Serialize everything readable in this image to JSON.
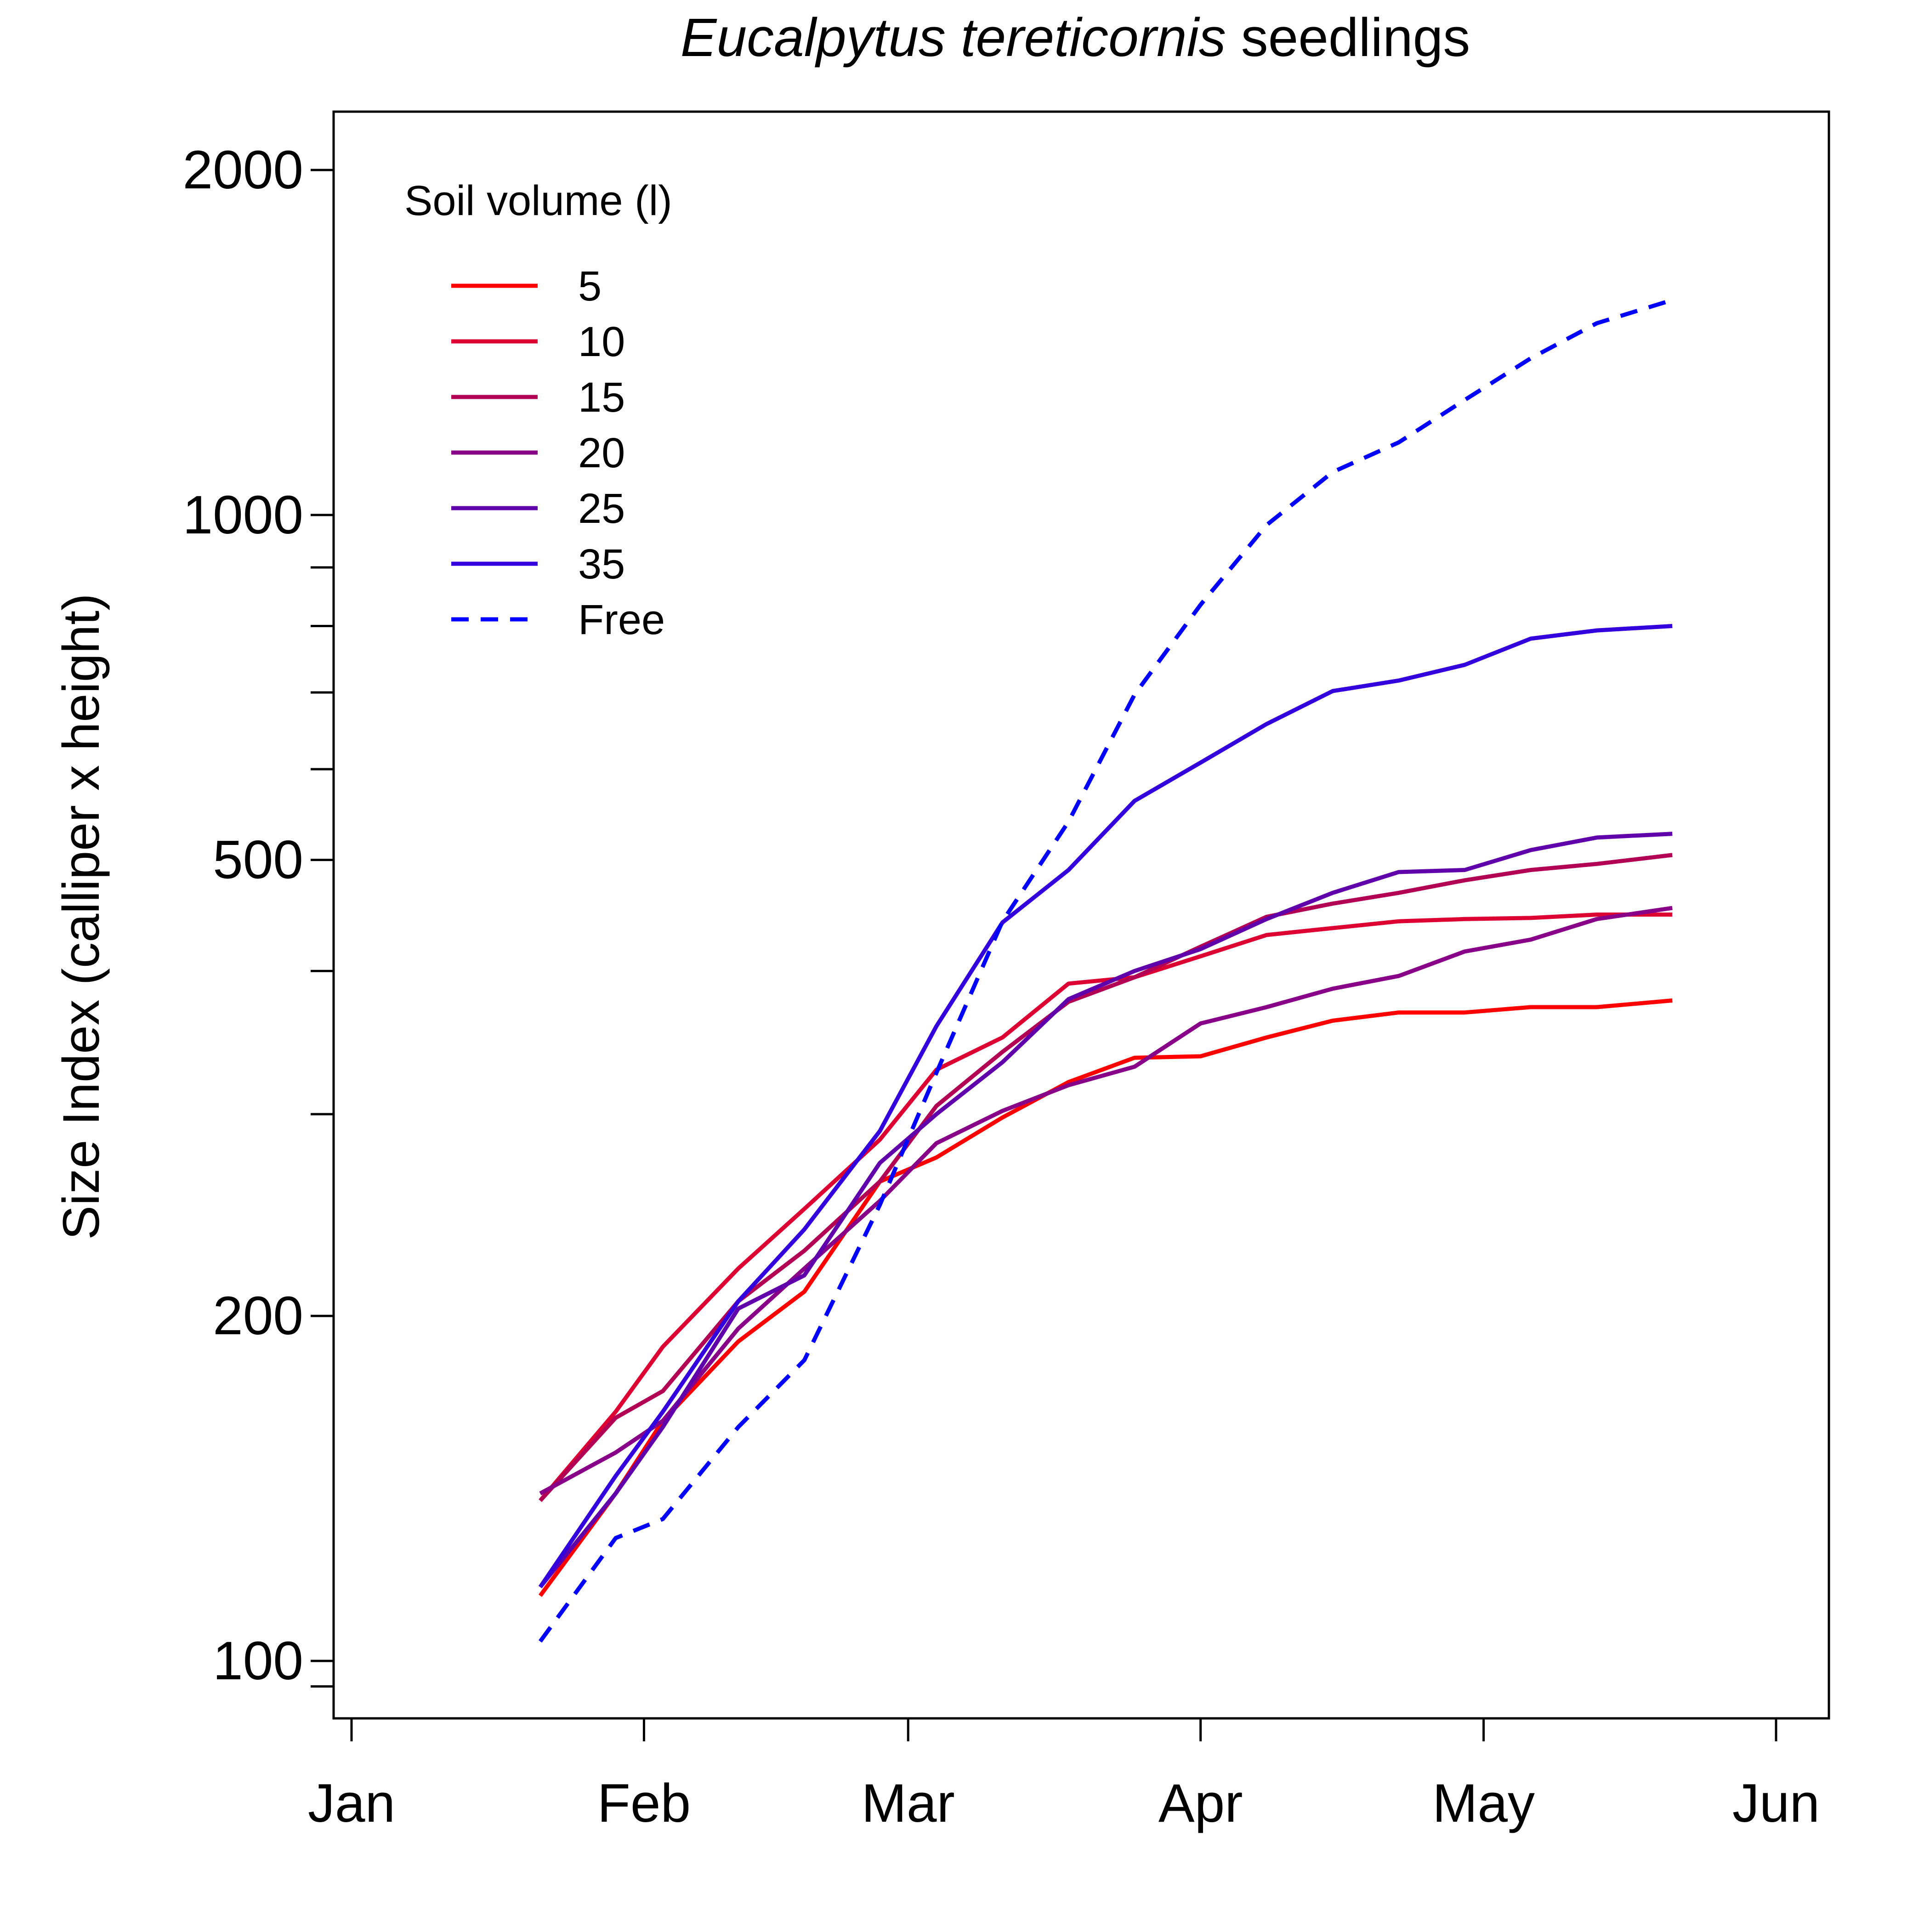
{
  "chart_data": {
    "type": "line",
    "title": {
      "species": "Eucalpytus tereticornis",
      "suffix": "seedlings"
    },
    "ylabel": "Size Index  (calliper x height)",
    "xlabel": "",
    "y_scale": "log",
    "ylim": [
      93,
      2240
    ],
    "y_ticks": [
      100,
      200,
      500,
      1000,
      2000
    ],
    "y_minor_ticks": [
      95,
      300,
      400,
      600,
      700,
      800,
      900
    ],
    "x_range": [
      "2013-01-01",
      "2013-06-01"
    ],
    "x_ticks": [
      {
        "date": "2013-01-01",
        "label": "Jan"
      },
      {
        "date": "2013-02-01",
        "label": "Feb"
      },
      {
        "date": "2013-03-01",
        "label": "Mar"
      },
      {
        "date": "2013-04-01",
        "label": "Apr"
      },
      {
        "date": "2013-05-01",
        "label": "May"
      },
      {
        "date": "2013-06-01",
        "label": "Jun"
      }
    ],
    "grid": false,
    "legend": {
      "title": "Soil volume (l)",
      "placement": "top-left"
    },
    "x": [
      "2013-01-21",
      "2013-01-29",
      "2013-02-03",
      "2013-02-11",
      "2013-02-18",
      "2013-02-26",
      "2013-03-04",
      "2013-03-11",
      "2013-03-18",
      "2013-03-25",
      "2013-04-01",
      "2013-04-08",
      "2013-04-15",
      "2013-04-22",
      "2013-04-29",
      "2013-05-06",
      "2013-05-13",
      "2013-05-21"
    ],
    "series": [
      {
        "name": "5",
        "color": "#ff0000",
        "dashed": false,
        "values": [
          114,
          140,
          162,
          190,
          210,
          262,
          275,
          298,
          320,
          336,
          337,
          350,
          362,
          368,
          368,
          372,
          372,
          377
        ]
      },
      {
        "name": "10",
        "color": "#dd0033",
        "dashed": false,
        "values": [
          138,
          165,
          188,
          220,
          248,
          285,
          328,
          350,
          390,
          395,
          412,
          430,
          436,
          442,
          444,
          445,
          448,
          448
        ]
      },
      {
        "name": "15",
        "color": "#b20055",
        "dashed": false,
        "values": [
          138,
          163,
          172,
          206,
          228,
          262,
          305,
          340,
          376,
          395,
          420,
          446,
          458,
          468,
          480,
          490,
          496,
          505
        ]
      },
      {
        "name": "20",
        "color": "#880088",
        "dashed": false,
        "values": [
          140,
          152,
          162,
          195,
          220,
          252,
          283,
          302,
          318,
          330,
          360,
          372,
          386,
          396,
          416,
          426,
          444,
          454
        ]
      },
      {
        "name": "25",
        "color": "#6000aa",
        "dashed": false,
        "values": [
          116,
          140,
          160,
          203,
          217,
          272,
          300,
          333,
          378,
          400,
          418,
          444,
          468,
          488,
          490,
          510,
          523,
          527
        ]
      },
      {
        "name": "35",
        "color": "#3300dd",
        "dashed": false,
        "values": [
          116,
          145,
          165,
          206,
          238,
          290,
          358,
          441,
          490,
          563,
          608,
          657,
          702,
          717,
          740,
          780,
          793,
          800
        ]
      },
      {
        "name": "Free",
        "color": "#0000ff",
        "dashed": true,
        "values": [
          104,
          128,
          133,
          160,
          183,
          250,
          326,
          442,
          540,
          697,
          835,
          980,
          1090,
          1157,
          1260,
          1370,
          1470,
          1540
        ]
      }
    ]
  }
}
